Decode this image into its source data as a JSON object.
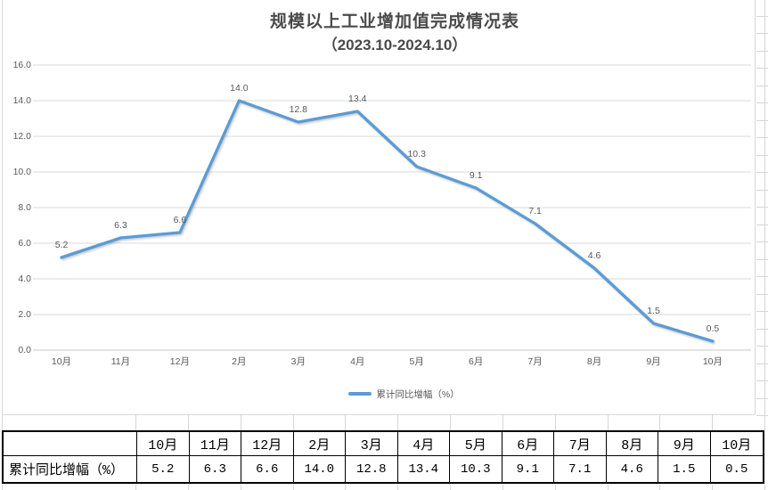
{
  "chart_data": {
    "type": "line",
    "title": "规模以上工业增加值完成情况表",
    "subtitle": "（2023.10-2024.10）",
    "categories": [
      "10月",
      "11月",
      "12月",
      "2月",
      "3月",
      "4月",
      "5月",
      "6月",
      "7月",
      "8月",
      "9月",
      "10月"
    ],
    "series": [
      {
        "name": "累计同比增幅（%）",
        "values": [
          5.2,
          6.3,
          6.6,
          14.0,
          12.8,
          13.4,
          10.3,
          9.1,
          7.1,
          4.6,
          1.5,
          0.5
        ]
      }
    ],
    "data_labels": [
      "5.2",
      "6.3",
      "6.6",
      "14.0",
      "12.8",
      "13.4",
      "10.3",
      "9.1",
      "7.1",
      "4.6",
      "1.5",
      "0.5"
    ],
    "ylim": [
      0,
      16
    ],
    "y_tick_step": 2,
    "y_tick_labels": [
      "0.0",
      "2.0",
      "4.0",
      "6.0",
      "8.0",
      "10.0",
      "12.0",
      "14.0",
      "16.0"
    ],
    "grid": true,
    "legend_position": "bottom",
    "colors": {
      "line": "#5B9BD5",
      "title": "#4A4A4A",
      "axis_text": "#595959",
      "gridline": "#D9D9D9",
      "axis_line": "#C6C6C6"
    }
  },
  "table": {
    "corner_cell": "",
    "headers": [
      "10月",
      "11月",
      "12月",
      "2月",
      "3月",
      "4月",
      "5月",
      "6月",
      "7月",
      "8月",
      "9月",
      "10月"
    ],
    "row_label": "累计同比增幅（%）",
    "values": [
      "5.2",
      "6.3",
      "6.6",
      "14.0",
      "12.8",
      "13.4",
      "10.3",
      "9.1",
      "7.1",
      "4.6",
      "1.5",
      "0.5"
    ]
  }
}
